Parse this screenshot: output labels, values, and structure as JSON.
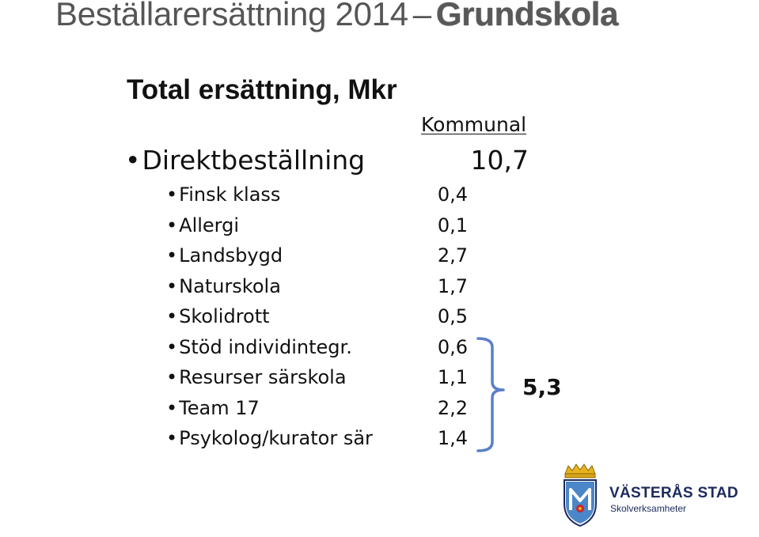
{
  "title": {
    "part1": "Beställarersättning 2014",
    "separator": "–",
    "part2": "Grundskola"
  },
  "subtitle": "Total ersättning, Mkr",
  "column_header": "Kommunal",
  "main_item": {
    "label": "Direktbeställning",
    "value": "10,7"
  },
  "sub_items": [
    {
      "label": "Finsk klass",
      "value": "0,4"
    },
    {
      "label": "Allergi",
      "value": "0,1"
    },
    {
      "label": "Landsbygd",
      "value": "2,7"
    },
    {
      "label": "Naturskola",
      "value": "1,7"
    },
    {
      "label": "Skolidrott",
      "value": "0,5"
    },
    {
      "label": "Stöd individintegr.",
      "value": "0,6"
    },
    {
      "label": "Resurser särskola",
      "value": "1,1"
    },
    {
      "label": "Team 17",
      "value": "2,2"
    },
    {
      "label": "Psykolog/kurator sär",
      "value": "1,4"
    }
  ],
  "group_total": "5,3",
  "bullet_char": "•",
  "brace_color": "#5b7ec9",
  "logo": {
    "name": "VÄSTERÅS STAD",
    "subtitle": "Skolverksamheter",
    "crest_icon": "vasteras-crest-icon"
  }
}
